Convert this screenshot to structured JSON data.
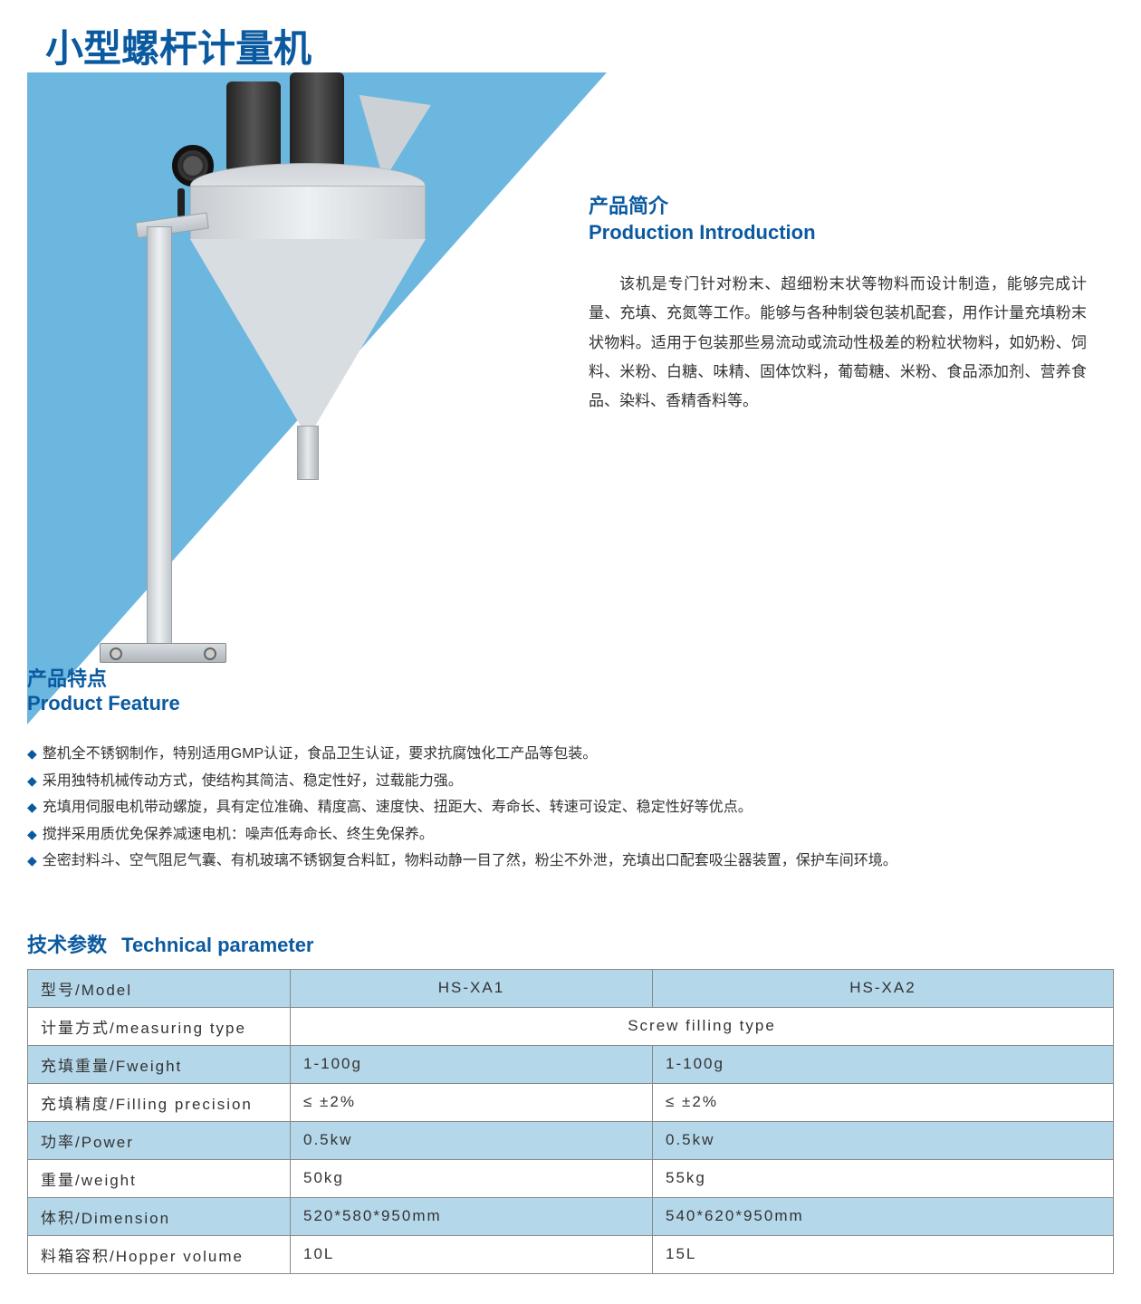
{
  "colors": {
    "brand_blue": "#0b5aa0",
    "triangle_blue": "#6bb7e0",
    "row_alt_bg": "#b4d7ea",
    "text": "#333333",
    "border": "#888888",
    "bg": "#ffffff"
  },
  "title": "小型螺杆计量机",
  "intro": {
    "heading_cn": "产品简介",
    "heading_en": "Production Introduction",
    "body": "该机是专门针对粉末、超细粉末状等物料而设计制造，能够完成计量、充填、充氮等工作。能够与各种制袋包装机配套，用作计量充填粉末状物料。适用于包装那些易流动或流动性极差的粉粒状物料，如奶粉、饲料、米粉、白糖、味精、固体饮料，葡萄糖、米粉、食品添加剂、营养食品、染料、香精香料等。"
  },
  "feature": {
    "heading_cn": "产品特点",
    "heading_en": "Product Feature",
    "items": [
      "整机全不锈钢制作，特别适用GMP认证，食品卫生认证，要求抗腐蚀化工产品等包装。",
      "采用独特机械传动方式，使结构其简洁、稳定性好，过载能力强。",
      "充填用伺服电机带动螺旋，具有定位准确、精度高、速度快、扭距大、寿命长、转速可设定、稳定性好等优点。",
      "搅拌采用质优免保养减速电机：噪声低寿命长、终生免保养。",
      "全密封料斗、空气阻尼气囊、有机玻璃不锈钢复合料缸，物料动静一目了然，粉尘不外泄，充填出口配套吸尘器装置，保护车间环境。"
    ]
  },
  "tech": {
    "heading_cn": "技术参数",
    "heading_en": "Technical parameter",
    "columns": [
      "型号/Model",
      "HS-XA1",
      "HS-XA2"
    ],
    "rows": [
      {
        "label": "计量方式/measuring type",
        "span": "Screw filling type",
        "alt": false
      },
      {
        "label": "充填重量/Fweight",
        "c1": "1-100g",
        "c2": "1-100g",
        "alt": true
      },
      {
        "label": "充填精度/Filling precision",
        "c1": "≤ ±2%",
        "c2": "≤ ±2%",
        "alt": false
      },
      {
        "label": "功率/Power",
        "c1": "0.5kw",
        "c2": "0.5kw",
        "alt": true
      },
      {
        "label": "重量/weight",
        "c1": "50kg",
        "c2": "55kg",
        "alt": false
      },
      {
        "label": "体积/Dimension",
        "c1": "520*580*950mm",
        "c2": "540*620*950mm",
        "alt": true
      },
      {
        "label": "料箱容积/Hopper volume",
        "c1": "10L",
        "c2": "15L",
        "alt": false
      }
    ]
  }
}
